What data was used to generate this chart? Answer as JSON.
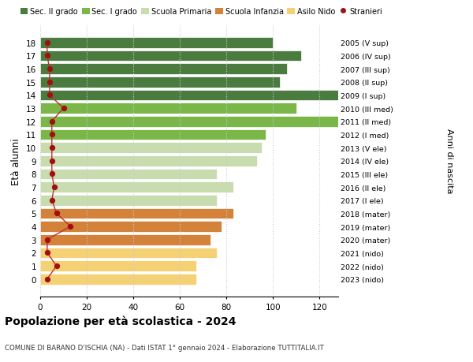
{
  "ages": [
    18,
    17,
    16,
    15,
    14,
    13,
    12,
    11,
    10,
    9,
    8,
    7,
    6,
    5,
    4,
    3,
    2,
    1,
    0
  ],
  "bar_values": [
    100,
    112,
    106,
    103,
    128,
    110,
    128,
    97,
    95,
    93,
    76,
    83,
    76,
    83,
    78,
    73,
    76,
    67,
    67
  ],
  "bar_colors": [
    "#4a7c3f",
    "#4a7c3f",
    "#4a7c3f",
    "#4a7c3f",
    "#4a7c3f",
    "#7ab648",
    "#7ab648",
    "#7ab648",
    "#c8dcb0",
    "#c8dcb0",
    "#c8dcb0",
    "#c8dcb0",
    "#c8dcb0",
    "#d4813a",
    "#d4813a",
    "#d4813a",
    "#f5d176",
    "#f5d176",
    "#f5d176"
  ],
  "stranieri_values": [
    3,
    3,
    4,
    4,
    4,
    10,
    5,
    5,
    5,
    5,
    5,
    6,
    5,
    7,
    13,
    3,
    3,
    7,
    3
  ],
  "right_labels": [
    "2005 (V sup)",
    "2006 (IV sup)",
    "2007 (III sup)",
    "2008 (II sup)",
    "2009 (I sup)",
    "2010 (III med)",
    "2011 (II med)",
    "2012 (I med)",
    "2013 (V ele)",
    "2014 (IV ele)",
    "2015 (III ele)",
    "2016 (II ele)",
    "2017 (I ele)",
    "2018 (mater)",
    "2019 (mater)",
    "2020 (mater)",
    "2021 (nido)",
    "2022 (nido)",
    "2023 (nido)"
  ],
  "legend_labels": [
    "Sec. II grado",
    "Sec. I grado",
    "Scuola Primaria",
    "Scuola Infanzia",
    "Asilo Nido",
    "Stranieri"
  ],
  "legend_colors": [
    "#4a7c3f",
    "#7ab648",
    "#c8dcb0",
    "#d4813a",
    "#f5d176",
    "#a01010"
  ],
  "ylabel": "Età alunni",
  "right_ylabel": "Anni di nascita",
  "title": "Popolazione per età scolastica - 2024",
  "subtitle": "COMUNE DI BARANO D'ISCHIA (NA) - Dati ISTAT 1° gennaio 2024 - Elaborazione TUTTITALIA.IT",
  "xlim": [
    0,
    128
  ],
  "xticks": [
    0,
    20,
    40,
    60,
    80,
    100,
    120
  ],
  "bar_height": 0.82,
  "bg_color": "#ffffff",
  "grid_color": "#cccccc",
  "stranieri_color": "#a01010",
  "stranieri_line_color": "#c03030"
}
